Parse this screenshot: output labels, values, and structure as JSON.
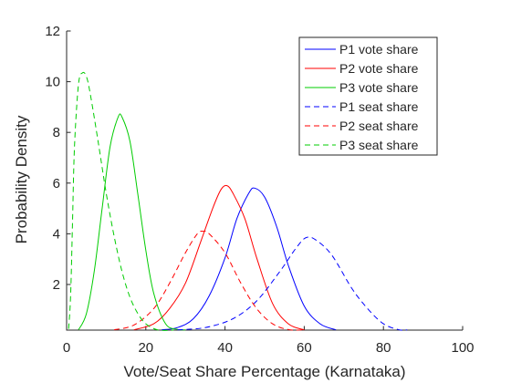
{
  "chart_data": {
    "type": "line",
    "xlabel": "Vote/Seat Share Percentage (Karnataka)",
    "ylabel": "Probability Density",
    "xlim": [
      0,
      100
    ],
    "ylim": [
      0.2,
      12
    ],
    "xticks": [
      0,
      20,
      40,
      60,
      80,
      100
    ],
    "yticks": [
      2,
      4,
      6,
      8,
      10,
      12
    ],
    "grid": false,
    "legend_position": "top-right",
    "series": [
      {
        "name": "P1 vote share",
        "style": "solid",
        "color": "#0000ff",
        "x": [
          24,
          28,
          32,
          36,
          40,
          43,
          46,
          47.5,
          50,
          53,
          56,
          60,
          64,
          68
        ],
        "y": [
          0.21,
          0.3,
          0.65,
          1.55,
          3.05,
          4.6,
          5.6,
          5.8,
          5.45,
          4.3,
          2.75,
          1.15,
          0.45,
          0.21
        ]
      },
      {
        "name": "P2 vote share",
        "style": "solid",
        "color": "#ff0000",
        "x": [
          17,
          22,
          26,
          30,
          34,
          37,
          39,
          40.5,
          42,
          45,
          48,
          52,
          56,
          60
        ],
        "y": [
          0.21,
          0.45,
          1.05,
          2.05,
          3.75,
          5.05,
          5.75,
          5.9,
          5.6,
          4.6,
          3.05,
          1.25,
          0.45,
          0.21
        ]
      },
      {
        "name": "P3 vote share",
        "style": "solid",
        "color": "#00cc00",
        "x": [
          3,
          5,
          7,
          9,
          11,
          13,
          14,
          16,
          18,
          20,
          22,
          25,
          28,
          30
        ],
        "y": [
          0.21,
          0.85,
          2.55,
          5.05,
          7.45,
          8.6,
          8.6,
          7.65,
          5.55,
          3.35,
          1.65,
          0.45,
          0.23,
          0.21
        ]
      },
      {
        "name": "P1 seat share",
        "style": "dashed",
        "color": "#0000ff",
        "x": [
          28,
          35,
          42,
          48,
          54,
          58,
          60.5,
          63,
          67,
          72,
          76,
          80,
          84,
          86
        ],
        "y": [
          0.21,
          0.3,
          0.65,
          1.35,
          2.55,
          3.45,
          3.85,
          3.75,
          3.15,
          1.85,
          1.05,
          0.45,
          0.21,
          0.21
        ]
      },
      {
        "name": "P2 seat share",
        "style": "dashed",
        "color": "#ff0000",
        "x": [
          12,
          17,
          22,
          26,
          30,
          33,
          34.5,
          36,
          40,
          44,
          48,
          52,
          56,
          60
        ],
        "y": [
          0.21,
          0.4,
          1.05,
          2.05,
          3.25,
          4.0,
          4.1,
          4.0,
          3.25,
          2.05,
          1.05,
          0.45,
          0.22,
          0.21
        ]
      },
      {
        "name": "P3 seat share",
        "style": "dashed",
        "color": "#00cc00",
        "x": [
          0.5,
          1,
          1.5,
          2,
          3,
          4,
          5,
          6,
          8,
          10,
          12,
          14,
          16,
          18,
          20,
          23,
          27
        ],
        "y": [
          0.25,
          1.5,
          4.5,
          7.5,
          9.9,
          10.35,
          10.2,
          9.5,
          7.6,
          5.6,
          3.9,
          2.5,
          1.5,
          0.85,
          0.45,
          0.21,
          0.2
        ]
      }
    ]
  }
}
